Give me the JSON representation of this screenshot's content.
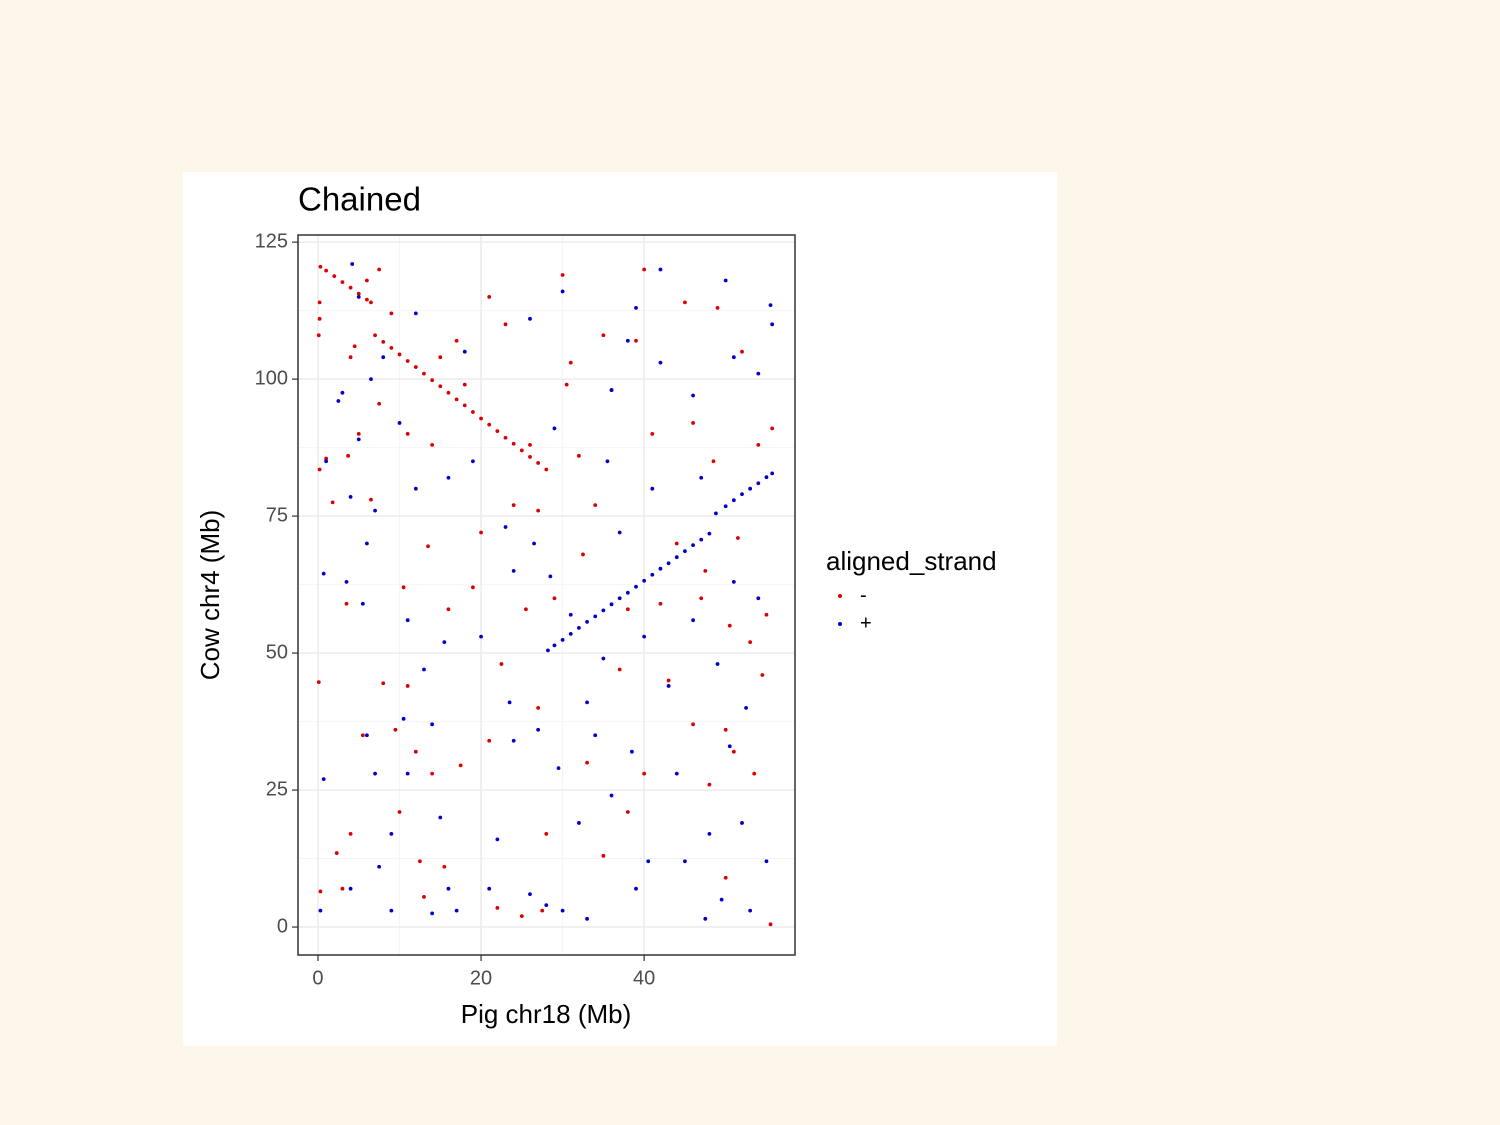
{
  "chart_data": {
    "type": "scatter",
    "title": "Chained",
    "x_label": "Pig chr18 (Mb)",
    "y_label": "Cow chr4 (Mb)",
    "legend_title": "aligned_strand",
    "legend": "right",
    "grid": true,
    "xlim": [
      -2.45,
      58.5
    ],
    "ylim": [
      -5.1,
      126.3
    ],
    "xticks": [
      0,
      20,
      40
    ],
    "yticks": [
      0,
      25,
      50,
      75,
      100,
      125
    ],
    "series": [
      {
        "name": "-",
        "color": "#dd0000",
        "x": [
          0.3,
          1,
          2,
          3,
          4,
          5,
          6,
          6.5,
          7,
          8,
          9,
          10,
          11,
          12,
          13,
          14,
          15,
          16,
          17,
          18,
          19,
          20,
          21,
          22,
          23,
          24,
          25,
          26,
          27,
          28,
          0.2,
          0.2,
          0.1,
          0.2,
          0.1,
          0.3,
          1,
          1.8,
          2.3,
          3,
          3.5,
          3.7,
          4,
          4,
          4.5,
          5,
          5.5,
          6,
          6.5,
          7.5,
          7.5,
          8,
          9,
          9.5,
          10,
          10.5,
          11,
          11,
          12,
          12.5,
          13,
          13.5,
          14,
          14,
          15,
          15.5,
          16,
          17,
          17.5,
          18,
          19,
          20,
          21,
          21,
          22,
          22.5,
          23,
          24,
          25,
          25.5,
          26,
          27,
          27,
          27.5,
          28,
          29,
          30,
          30.5,
          31,
          32,
          32.5,
          33,
          34,
          35,
          35,
          36,
          37,
          38,
          38,
          39,
          40,
          40,
          41,
          42,
          43,
          44,
          45,
          46,
          46,
          47,
          47.5,
          48,
          48.5,
          49,
          50,
          50,
          50.5,
          51,
          51.5,
          52,
          53,
          53.5,
          54,
          54.5,
          55,
          55.5,
          55.7
        ],
        "y": [
          120.5,
          119.8,
          118.8,
          117.7,
          116.7,
          115.6,
          114.5,
          114,
          108,
          106.8,
          105.7,
          104.5,
          103.3,
          102.2,
          101,
          99.8,
          98.7,
          97.5,
          96.3,
          95.2,
          94,
          92.8,
          91.7,
          90.5,
          89.3,
          88.2,
          87,
          85.8,
          84.7,
          83.5,
          114,
          111,
          108,
          83.5,
          44.7,
          6.5,
          85.5,
          77.5,
          13.5,
          7,
          59,
          86,
          104,
          17,
          106,
          90,
          35,
          118,
          78,
          120,
          95.5,
          44.5,
          112,
          36,
          21,
          62,
          44,
          90,
          32,
          12,
          5.5,
          69.5,
          28,
          88,
          104,
          11,
          58,
          107,
          29.5,
          99,
          62,
          72,
          34,
          115,
          3.5,
          48,
          110,
          77,
          2,
          58,
          88,
          40,
          76,
          3,
          17,
          60,
          119,
          99,
          103,
          86,
          68,
          30,
          77,
          13,
          108,
          98,
          47,
          58,
          21,
          107,
          28,
          120,
          90,
          59,
          45,
          70,
          114,
          92,
          37,
          60,
          65,
          26,
          85,
          113,
          9,
          36,
          55,
          32,
          71,
          105,
          52,
          28,
          88,
          46,
          57,
          0.5,
          91
        ]
      },
      {
        "name": "+",
        "color": "#0000cc",
        "x": [
          28.2,
          29,
          30,
          31,
          32,
          33,
          34,
          35,
          36,
          37,
          38,
          39,
          40,
          41,
          42,
          43,
          44,
          45,
          46,
          47,
          48,
          48.8,
          50,
          51,
          52,
          53,
          54,
          55,
          55.7,
          0.3,
          0.7,
          0.7,
          1,
          2.5,
          3,
          3.5,
          4,
          4,
          4.2,
          5,
          5,
          5.5,
          6,
          6,
          6.5,
          7,
          7,
          7.5,
          8,
          9,
          9,
          10,
          10.5,
          11,
          11,
          12,
          12,
          13,
          14,
          14,
          15,
          15.5,
          16,
          16,
          17,
          18,
          19,
          20,
          21,
          22,
          23,
          23.5,
          24,
          24,
          26,
          26,
          26.5,
          27,
          28,
          28.5,
          29,
          29.5,
          30,
          30,
          31,
          32,
          33,
          33,
          34,
          35,
          35.5,
          36,
          36,
          37,
          38,
          38.5,
          39,
          39,
          40,
          40.5,
          41,
          42,
          42,
          43,
          44,
          45,
          46,
          46,
          47,
          47.5,
          48,
          49,
          49.5,
          50,
          50.5,
          51,
          51,
          52,
          52.5,
          53,
          54,
          54,
          55,
          55.5,
          55.7
        ],
        "y": [
          50.5,
          51.4,
          52.4,
          53.5,
          54.6,
          55.7,
          56.7,
          57.8,
          58.9,
          60,
          61,
          62.1,
          63.2,
          64.3,
          65.4,
          66.4,
          67.5,
          68.6,
          69.7,
          70.7,
          71.8,
          75.5,
          76.8,
          77.9,
          79,
          80,
          81,
          82.1,
          82.8,
          3,
          27,
          64.5,
          85,
          96,
          97.5,
          63,
          7,
          78.5,
          121,
          115,
          89,
          59,
          35,
          70,
          100,
          28,
          76,
          11,
          104,
          3,
          17,
          92,
          38,
          56,
          28,
          80,
          112,
          47,
          37,
          2.5,
          20,
          52,
          82,
          7,
          3,
          105,
          85,
          53,
          7,
          16,
          73,
          41,
          65,
          34,
          6,
          111,
          70,
          36,
          4,
          64,
          91,
          29,
          116,
          3,
          57,
          19,
          41,
          1.5,
          35,
          49,
          85,
          98,
          24,
          72,
          107,
          32,
          113,
          7,
          53,
          12,
          80,
          103,
          120,
          44,
          28,
          12,
          97,
          56,
          82,
          1.5,
          17,
          48,
          5,
          118,
          33,
          104,
          63,
          19,
          40,
          3,
          60,
          101,
          12,
          113.5,
          110
        ]
      }
    ]
  }
}
